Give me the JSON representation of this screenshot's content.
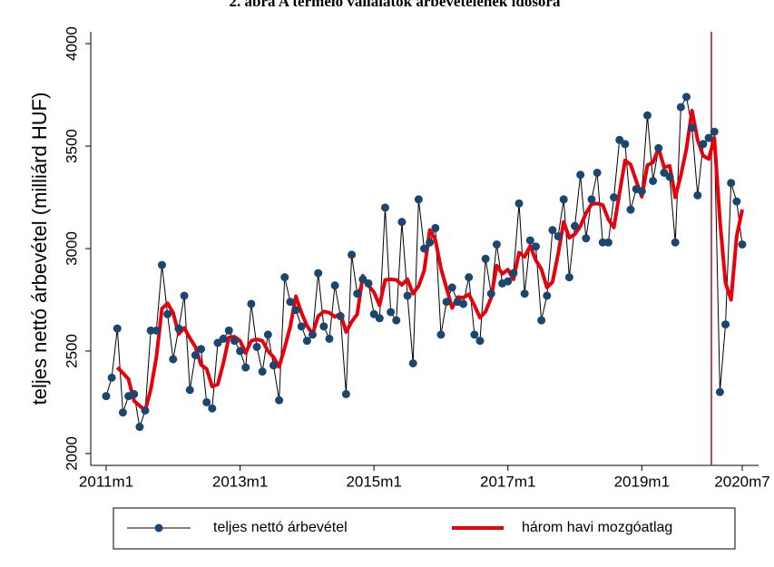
{
  "chart_data": {
    "type": "line",
    "title": "2. ábra A termelő vállalatok árbevételének idősora",
    "y_label": "teljes nettó árbevétel (milliárd HUF)",
    "categories": [
      "2011m1",
      null,
      null,
      null,
      null,
      null,
      null,
      null,
      null,
      null,
      null,
      null,
      null,
      null,
      null,
      null,
      null,
      null,
      null,
      null,
      null,
      null,
      null,
      null,
      "2013m1",
      null,
      null,
      null,
      null,
      null,
      null,
      null,
      null,
      null,
      null,
      null,
      null,
      null,
      null,
      null,
      null,
      null,
      null,
      null,
      null,
      null,
      null,
      null,
      "2015m1",
      null,
      null,
      null,
      null,
      null,
      null,
      null,
      null,
      null,
      null,
      null,
      null,
      null,
      null,
      null,
      null,
      null,
      null,
      null,
      null,
      null,
      null,
      null,
      "2017m1",
      null,
      null,
      null,
      null,
      null,
      null,
      null,
      null,
      null,
      null,
      null,
      null,
      null,
      null,
      null,
      null,
      null,
      null,
      null,
      null,
      null,
      null,
      null,
      "2019m1",
      null,
      null,
      null,
      null,
      null,
      null,
      null,
      null,
      null,
      null,
      null,
      null,
      null,
      null,
      null,
      null,
      null,
      "2020m7"
    ],
    "series": [
      {
        "name": "teljes nettó árbevétel",
        "color": "#1a476f",
        "line_color": "#000000",
        "marker": true,
        "values": [
          2280,
          2370,
          2610,
          2200,
          2280,
          2290,
          2130,
          2210,
          2600,
          2600,
          2920,
          2680,
          2460,
          2610,
          2770,
          2310,
          2480,
          2510,
          2250,
          2220,
          2540,
          2560,
          2600,
          2550,
          2500,
          2420,
          2730,
          2520,
          2400,
          2580,
          2430,
          2260,
          2860,
          2740,
          2700,
          2620,
          2550,
          2580,
          2880,
          2620,
          2560,
          2820,
          2670,
          2290,
          2970,
          2780,
          2850,
          2830,
          2680,
          2660,
          3200,
          2690,
          2650,
          3130,
          2770,
          2440,
          3240,
          3000,
          3030,
          3100,
          2580,
          2740,
          2810,
          2740,
          2730,
          2860,
          2580,
          2550,
          2950,
          2780,
          3020,
          2830,
          2840,
          2880,
          3220,
          2780,
          3040,
          3010,
          2650,
          2770,
          3090,
          3060,
          3240,
          2860,
          3110,
          3360,
          3050,
          3240,
          3370,
          3030,
          3030,
          3250,
          3530,
          3510,
          3190,
          3290,
          3280,
          3650,
          3330,
          3490,
          3370,
          3350,
          3030,
          3690,
          3740,
          3590,
          3260,
          3510,
          3540,
          3570,
          2300,
          2630,
          3320,
          3230,
          3020
        ]
      },
      {
        "name": "három havi mozgóatlag",
        "color": "#e8000b",
        "marker": false,
        "values": [
          null,
          null,
          2420,
          2393,
          2363,
          2257,
          2233,
          2210,
          2313,
          2470,
          2707,
          2733,
          2687,
          2583,
          2613,
          2563,
          2520,
          2433,
          2413,
          2327,
          2337,
          2440,
          2567,
          2570,
          2550,
          2490,
          2550,
          2557,
          2550,
          2500,
          2470,
          2423,
          2517,
          2620,
          2767,
          2687,
          2623,
          2583,
          2670,
          2693,
          2687,
          2667,
          2683,
          2593,
          2643,
          2680,
          2867,
          2820,
          2787,
          2723,
          2847,
          2850,
          2847,
          2823,
          2850,
          2780,
          2817,
          2893,
          3090,
          3043,
          2903,
          2807,
          2710,
          2763,
          2760,
          2777,
          2723,
          2663,
          2693,
          2760,
          2917,
          2877,
          2897,
          2850,
          2980,
          2960,
          3013,
          2943,
          2900,
          2810,
          2837,
          2973,
          3130,
          3053,
          3070,
          3110,
          3173,
          3217,
          3220,
          3213,
          3143,
          3103,
          3270,
          3430,
          3410,
          3330,
          3253,
          3407,
          3420,
          3490,
          3397,
          3403,
          3250,
          3357,
          3487,
          3673,
          3530,
          3453,
          3437,
          3540,
          3137,
          2833,
          2750,
          3060,
          3190
        ]
      }
    ],
    "ylim": [
      1942,
      4058
    ],
    "yticks": [
      2000,
      2500,
      3000,
      3500,
      4000
    ],
    "grid": false
  }
}
